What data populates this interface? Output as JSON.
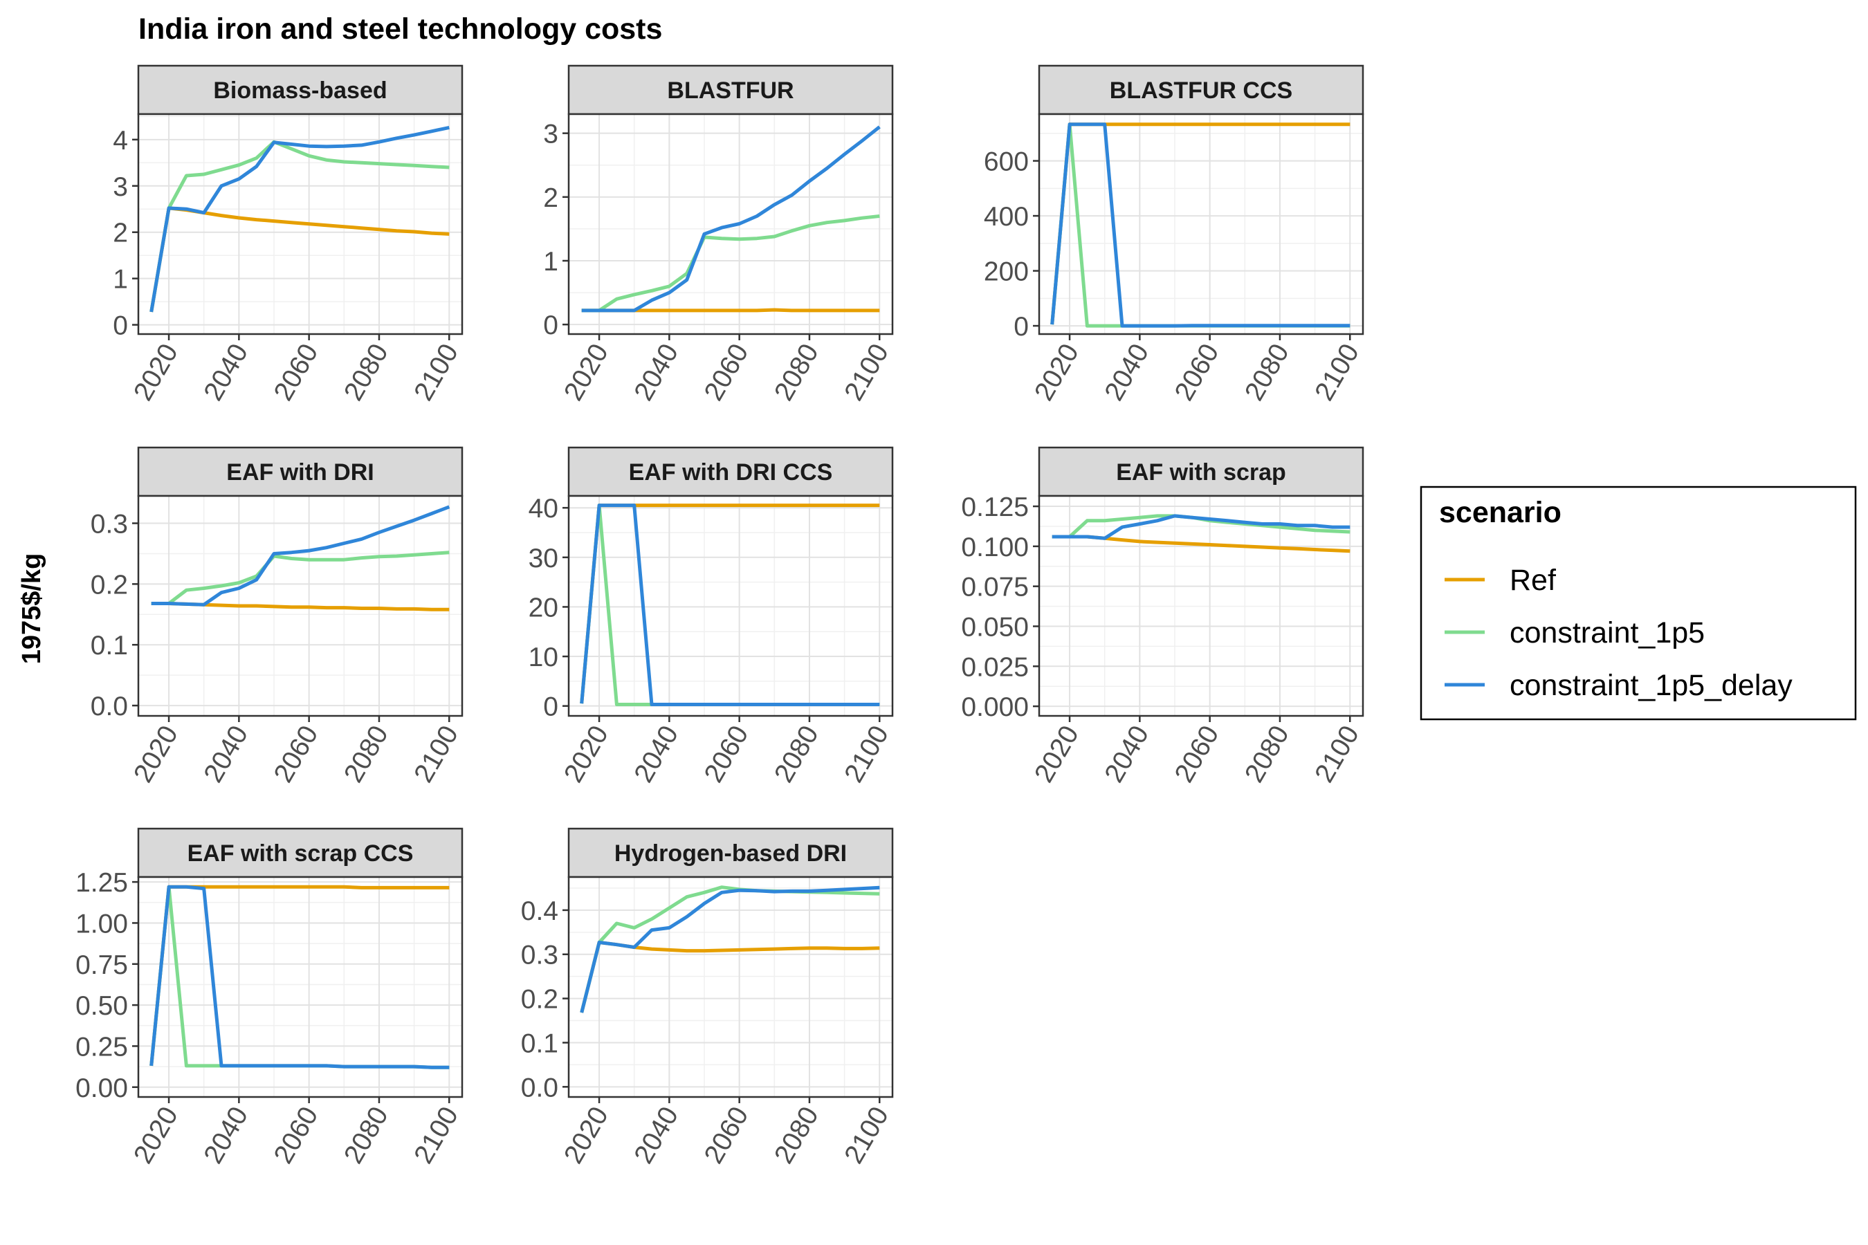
{
  "title": "India iron and steel technology costs",
  "ylabel": "1975$/kg",
  "legend": {
    "title": "scenario"
  },
  "colors": {
    "Ref": "#E69F00",
    "constraint_1p5": "#7FDB8F",
    "constraint_1p5_delay": "#2F86D9"
  },
  "chart_data": [
    {
      "type": "line",
      "facet": "Biomass-based",
      "x": [
        2015,
        2020,
        2025,
        2030,
        2035,
        2040,
        2045,
        2050,
        2055,
        2060,
        2065,
        2070,
        2075,
        2080,
        2085,
        2090,
        2095,
        2100
      ],
      "ylim": [
        -0.2,
        4.55
      ],
      "yticks": [
        0,
        1,
        2,
        3,
        4
      ],
      "yticklabels": [
        "0",
        "1",
        "2",
        "3",
        "4"
      ],
      "series": [
        {
          "name": "Ref",
          "values": [
            0.28,
            2.52,
            2.48,
            2.42,
            2.36,
            2.31,
            2.27,
            2.24,
            2.21,
            2.18,
            2.15,
            2.12,
            2.09,
            2.06,
            2.03,
            2.01,
            1.98,
            1.96
          ]
        },
        {
          "name": "constraint_1p5",
          "values": [
            0.28,
            2.52,
            3.22,
            3.25,
            3.35,
            3.45,
            3.6,
            3.95,
            3.8,
            3.65,
            3.56,
            3.52,
            3.5,
            3.48,
            3.46,
            3.44,
            3.42,
            3.4
          ]
        },
        {
          "name": "constraint_1p5_delay",
          "values": [
            0.28,
            2.52,
            2.5,
            2.42,
            3.0,
            3.15,
            3.42,
            3.94,
            3.9,
            3.86,
            3.85,
            3.86,
            3.88,
            3.95,
            4.03,
            4.1,
            4.18,
            4.26
          ]
        }
      ]
    },
    {
      "type": "line",
      "facet": "BLASTFUR",
      "x": [
        2015,
        2020,
        2025,
        2030,
        2035,
        2040,
        2045,
        2050,
        2055,
        2060,
        2065,
        2070,
        2075,
        2080,
        2085,
        2090,
        2095,
        2100
      ],
      "ylim": [
        -0.15,
        3.3
      ],
      "yticks": [
        0,
        1,
        2,
        3
      ],
      "yticklabels": [
        "0",
        "1",
        "2",
        "3"
      ],
      "series": [
        {
          "name": "Ref",
          "values": [
            0.22,
            0.22,
            0.22,
            0.22,
            0.22,
            0.22,
            0.22,
            0.22,
            0.22,
            0.22,
            0.22,
            0.23,
            0.22,
            0.22,
            0.22,
            0.22,
            0.22,
            0.22
          ]
        },
        {
          "name": "constraint_1p5",
          "values": [
            0.22,
            0.22,
            0.4,
            0.47,
            0.53,
            0.6,
            0.8,
            1.37,
            1.35,
            1.34,
            1.35,
            1.38,
            1.47,
            1.55,
            1.6,
            1.63,
            1.67,
            1.7
          ]
        },
        {
          "name": "constraint_1p5_delay",
          "values": [
            0.22,
            0.22,
            0.22,
            0.22,
            0.38,
            0.5,
            0.7,
            1.42,
            1.52,
            1.58,
            1.7,
            1.88,
            2.03,
            2.25,
            2.45,
            2.67,
            2.88,
            3.1
          ]
        }
      ]
    },
    {
      "type": "line",
      "facet": "BLASTFUR CCS",
      "x": [
        2015,
        2020,
        2025,
        2030,
        2035,
        2040,
        2045,
        2050,
        2055,
        2060,
        2065,
        2070,
        2075,
        2080,
        2085,
        2090,
        2095,
        2100
      ],
      "ylim": [
        -30,
        770
      ],
      "yticks": [
        0,
        200,
        400,
        600
      ],
      "yticklabels": [
        "0",
        "200",
        "400",
        "600"
      ],
      "series": [
        {
          "name": "Ref",
          "values": [
            5,
            733,
            733,
            733,
            733,
            733,
            733,
            733,
            733,
            733,
            733,
            733,
            733,
            733,
            733,
            733,
            733,
            733
          ]
        },
        {
          "name": "constraint_1p5",
          "values": [
            5,
            733,
            0,
            0,
            0,
            0,
            0,
            0,
            0,
            0,
            0,
            0,
            0,
            0,
            0,
            0,
            0,
            0
          ]
        },
        {
          "name": "constraint_1p5_delay",
          "values": [
            5,
            733,
            733,
            733,
            0,
            0,
            0,
            0,
            1,
            1,
            1,
            1,
            1,
            1,
            1,
            1,
            1,
            1
          ]
        }
      ]
    },
    {
      "type": "line",
      "facet": "EAF with DRI",
      "x": [
        2015,
        2020,
        2025,
        2030,
        2035,
        2040,
        2045,
        2050,
        2055,
        2060,
        2065,
        2070,
        2075,
        2080,
        2085,
        2090,
        2095,
        2100
      ],
      "ylim": [
        -0.017,
        0.345
      ],
      "yticks": [
        0,
        0.1,
        0.2,
        0.3
      ],
      "yticklabels": [
        "0.0",
        "0.1",
        "0.2",
        "0.3"
      ],
      "series": [
        {
          "name": "Ref",
          "values": [
            0.168,
            0.168,
            0.167,
            0.166,
            0.165,
            0.164,
            0.164,
            0.163,
            0.162,
            0.162,
            0.161,
            0.161,
            0.16,
            0.16,
            0.159,
            0.159,
            0.158,
            0.158
          ]
        },
        {
          "name": "constraint_1p5",
          "values": [
            0.168,
            0.168,
            0.19,
            0.193,
            0.197,
            0.202,
            0.213,
            0.246,
            0.242,
            0.24,
            0.24,
            0.24,
            0.243,
            0.245,
            0.246,
            0.248,
            0.25,
            0.252
          ]
        },
        {
          "name": "constraint_1p5_delay",
          "values": [
            0.168,
            0.168,
            0.167,
            0.166,
            0.186,
            0.193,
            0.207,
            0.25,
            0.252,
            0.255,
            0.26,
            0.267,
            0.274,
            0.285,
            0.295,
            0.305,
            0.316,
            0.327
          ]
        }
      ]
    },
    {
      "type": "line",
      "facet": "EAF with DRI CCS",
      "x": [
        2015,
        2020,
        2025,
        2030,
        2035,
        2040,
        2045,
        2050,
        2055,
        2060,
        2065,
        2070,
        2075,
        2080,
        2085,
        2090,
        2095,
        2100
      ],
      "ylim": [
        -2,
        42.4
      ],
      "yticks": [
        0,
        10,
        20,
        30,
        40
      ],
      "yticklabels": [
        "0",
        "10",
        "20",
        "30",
        "40"
      ],
      "series": [
        {
          "name": "Ref",
          "values": [
            0.5,
            40.5,
            40.5,
            40.5,
            40.5,
            40.5,
            40.5,
            40.5,
            40.5,
            40.5,
            40.5,
            40.5,
            40.5,
            40.5,
            40.5,
            40.5,
            40.5,
            40.5
          ]
        },
        {
          "name": "constraint_1p5",
          "values": [
            0.5,
            40.5,
            0.3,
            0.3,
            0.3,
            0.3,
            0.3,
            0.3,
            0.3,
            0.3,
            0.3,
            0.3,
            0.3,
            0.3,
            0.3,
            0.3,
            0.3,
            0.3
          ]
        },
        {
          "name": "constraint_1p5_delay",
          "values": [
            0.5,
            40.5,
            40.5,
            40.5,
            0.3,
            0.3,
            0.3,
            0.3,
            0.3,
            0.3,
            0.3,
            0.3,
            0.3,
            0.3,
            0.3,
            0.3,
            0.3,
            0.3
          ]
        }
      ]
    },
    {
      "type": "line",
      "facet": "EAF with scrap",
      "x": [
        2015,
        2020,
        2025,
        2030,
        2035,
        2040,
        2045,
        2050,
        2055,
        2060,
        2065,
        2070,
        2075,
        2080,
        2085,
        2090,
        2095,
        2100
      ],
      "ylim": [
        -0.006,
        0.1315
      ],
      "yticks": [
        0,
        0.025,
        0.05,
        0.075,
        0.1,
        0.125
      ],
      "yticklabels": [
        "0.000",
        "0.025",
        "0.050",
        "0.075",
        "0.100",
        "0.125"
      ],
      "series": [
        {
          "name": "Ref",
          "values": [
            0.106,
            0.106,
            0.106,
            0.105,
            0.104,
            0.103,
            0.1025,
            0.102,
            0.1015,
            0.101,
            0.1005,
            0.1,
            0.0995,
            0.099,
            0.0985,
            0.098,
            0.0975,
            0.097
          ]
        },
        {
          "name": "constraint_1p5",
          "values": [
            0.106,
            0.106,
            0.116,
            0.116,
            0.117,
            0.118,
            0.119,
            0.119,
            0.118,
            0.116,
            0.115,
            0.114,
            0.113,
            0.112,
            0.111,
            0.11,
            0.1095,
            0.109
          ]
        },
        {
          "name": "constraint_1p5_delay",
          "values": [
            0.106,
            0.106,
            0.106,
            0.105,
            0.112,
            0.114,
            0.116,
            0.119,
            0.118,
            0.117,
            0.116,
            0.115,
            0.114,
            0.114,
            0.113,
            0.113,
            0.112,
            0.112
          ]
        }
      ]
    },
    {
      "type": "line",
      "facet": "EAF with scrap CCS",
      "x": [
        2015,
        2020,
        2025,
        2030,
        2035,
        2040,
        2045,
        2050,
        2055,
        2060,
        2065,
        2070,
        2075,
        2080,
        2085,
        2090,
        2095,
        2100
      ],
      "ylim": [
        -0.06,
        1.28
      ],
      "yticks": [
        0,
        0.25,
        0.5,
        0.75,
        1,
        1.25
      ],
      "yticklabels": [
        "0.00",
        "0.25",
        "0.50",
        "0.75",
        "1.00",
        "1.25"
      ],
      "series": [
        {
          "name": "Ref",
          "values": [
            0.13,
            1.22,
            1.22,
            1.22,
            1.22,
            1.22,
            1.22,
            1.22,
            1.22,
            1.22,
            1.22,
            1.22,
            1.215,
            1.215,
            1.215,
            1.215,
            1.215,
            1.215
          ]
        },
        {
          "name": "constraint_1p5",
          "values": [
            0.13,
            1.22,
            0.13,
            0.13,
            0.13,
            0.13,
            0.13,
            0.13,
            0.13,
            0.13,
            0.13,
            0.125,
            0.125,
            0.125,
            0.125,
            0.125,
            0.12,
            0.12
          ]
        },
        {
          "name": "constraint_1p5_delay",
          "values": [
            0.13,
            1.22,
            1.22,
            1.21,
            0.13,
            0.13,
            0.13,
            0.13,
            0.13,
            0.13,
            0.13,
            0.125,
            0.125,
            0.125,
            0.125,
            0.125,
            0.12,
            0.12
          ]
        }
      ]
    },
    {
      "type": "line",
      "facet": "Hydrogen-based DRI",
      "x": [
        2015,
        2020,
        2025,
        2030,
        2035,
        2040,
        2045,
        2050,
        2055,
        2060,
        2065,
        2070,
        2075,
        2080,
        2085,
        2090,
        2095,
        2100
      ],
      "ylim": [
        -0.023,
        0.475
      ],
      "yticks": [
        0,
        0.1,
        0.2,
        0.3,
        0.4
      ],
      "yticklabels": [
        "0.0",
        "0.1",
        "0.2",
        "0.3",
        "0.4"
      ],
      "series": [
        {
          "name": "Ref",
          "values": [
            0.168,
            0.327,
            0.322,
            0.316,
            0.312,
            0.31,
            0.308,
            0.308,
            0.309,
            0.31,
            0.311,
            0.312,
            0.313,
            0.314,
            0.314,
            0.313,
            0.313,
            0.314
          ]
        },
        {
          "name": "constraint_1p5",
          "values": [
            0.168,
            0.327,
            0.37,
            0.36,
            0.38,
            0.405,
            0.43,
            0.44,
            0.452,
            0.447,
            0.444,
            0.443,
            0.442,
            0.441,
            0.44,
            0.439,
            0.438,
            0.437
          ]
        },
        {
          "name": "constraint_1p5_delay",
          "values": [
            0.168,
            0.327,
            0.322,
            0.316,
            0.355,
            0.36,
            0.385,
            0.415,
            0.44,
            0.445,
            0.444,
            0.442,
            0.443,
            0.443,
            0.445,
            0.447,
            0.449,
            0.451
          ]
        }
      ]
    }
  ]
}
